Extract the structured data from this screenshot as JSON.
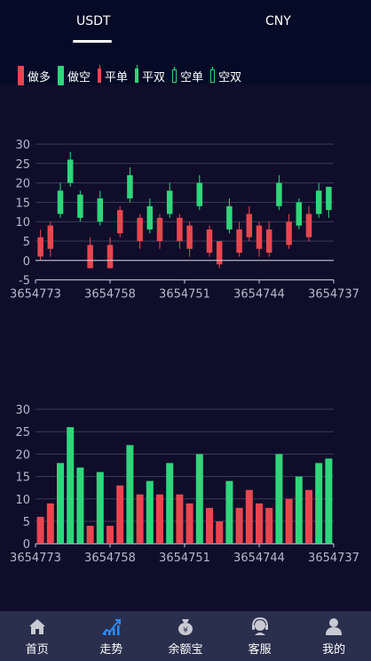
{
  "tabs": {
    "usdt": "USDT",
    "cny": "CNY"
  },
  "legend": [
    {
      "label": "做多",
      "style": "solid",
      "color": "#e8464f"
    },
    {
      "label": "做空",
      "style": "solid",
      "color": "#2fd67a"
    },
    {
      "label": "平单",
      "style": "thin",
      "color": "#e8464f"
    },
    {
      "label": "平双",
      "style": "thin",
      "color": "#2fd67a"
    },
    {
      "label": "空单",
      "style": "hollow",
      "color": "#2fd67a"
    },
    {
      "label": "空双",
      "style": "hollow",
      "color": "#2fd67a"
    }
  ],
  "colors": {
    "up": "#2fd67a",
    "down": "#e8464f",
    "grid": "#3a3d58",
    "axis_text": "#b9b8cc"
  },
  "chart_data": [
    {
      "type": "candlestick",
      "yticks": [
        -5,
        0,
        5,
        10,
        15,
        20,
        25,
        30
      ],
      "ylim": [
        -5,
        30
      ],
      "xticks": [
        "3654773",
        "3654758",
        "3654751",
        "3654744",
        "3654737"
      ],
      "candles": [
        {
          "open": 1,
          "close": 6,
          "low": 0,
          "high": 8,
          "dir": "down"
        },
        {
          "open": 3,
          "close": 9,
          "low": 1,
          "high": 10,
          "dir": "down"
        },
        {
          "open": 12,
          "close": 18,
          "low": 11,
          "high": 20,
          "dir": "up"
        },
        {
          "open": 20,
          "close": 26,
          "low": 19,
          "high": 28,
          "dir": "up"
        },
        {
          "open": 11,
          "close": 17,
          "low": 10,
          "high": 18,
          "dir": "up"
        },
        {
          "open": -2,
          "close": 4,
          "low": -2,
          "high": 6,
          "dir": "down"
        },
        {
          "open": 10,
          "close": 16,
          "low": 9,
          "high": 18,
          "dir": "up"
        },
        {
          "open": -2,
          "close": 4,
          "low": -2,
          "high": 6,
          "dir": "down"
        },
        {
          "open": 7,
          "close": 13,
          "low": 6,
          "high": 14,
          "dir": "down"
        },
        {
          "open": 16,
          "close": 22,
          "low": 15,
          "high": 24,
          "dir": "up"
        },
        {
          "open": 5,
          "close": 11,
          "low": 3,
          "high": 12,
          "dir": "down"
        },
        {
          "open": 8,
          "close": 14,
          "low": 7,
          "high": 16,
          "dir": "up"
        },
        {
          "open": 5,
          "close": 11,
          "low": 3,
          "high": 12,
          "dir": "down"
        },
        {
          "open": 12,
          "close": 18,
          "low": 11,
          "high": 20,
          "dir": "up"
        },
        {
          "open": 5,
          "close": 11,
          "low": 3,
          "high": 12,
          "dir": "down"
        },
        {
          "open": 3,
          "close": 9,
          "low": 1,
          "high": 10,
          "dir": "down"
        },
        {
          "open": 14,
          "close": 20,
          "low": 13,
          "high": 22,
          "dir": "up"
        },
        {
          "open": 2,
          "close": 8,
          "low": 1,
          "high": 9,
          "dir": "down"
        },
        {
          "open": -1,
          "close": 5,
          "low": -2,
          "high": 5,
          "dir": "down"
        },
        {
          "open": 8,
          "close": 14,
          "low": 7,
          "high": 16,
          "dir": "up"
        },
        {
          "open": 2,
          "close": 8,
          "low": 1,
          "high": 10,
          "dir": "down"
        },
        {
          "open": 6,
          "close": 12,
          "low": 5,
          "high": 14,
          "dir": "down"
        },
        {
          "open": 3,
          "close": 9,
          "low": 1,
          "high": 10,
          "dir": "down"
        },
        {
          "open": 2,
          "close": 8,
          "low": 1,
          "high": 10,
          "dir": "down"
        },
        {
          "open": 14,
          "close": 20,
          "low": 13,
          "high": 22,
          "dir": "up"
        },
        {
          "open": 4,
          "close": 10,
          "low": 3,
          "high": 12,
          "dir": "down"
        },
        {
          "open": 9,
          "close": 15,
          "low": 8,
          "high": 16,
          "dir": "up"
        },
        {
          "open": 6,
          "close": 12,
          "low": 5,
          "high": 14,
          "dir": "down"
        },
        {
          "open": 12,
          "close": 18,
          "low": 11,
          "high": 20,
          "dir": "up"
        },
        {
          "open": 13,
          "close": 19,
          "low": 11,
          "high": 19,
          "dir": "up"
        }
      ]
    },
    {
      "type": "bar",
      "yticks": [
        0,
        5,
        10,
        15,
        20,
        25,
        30
      ],
      "ylim": [
        0,
        30
      ],
      "xticks": [
        "3654773",
        "3654758",
        "3654751",
        "3654744",
        "3654737"
      ],
      "bars": [
        {
          "value": 6,
          "dir": "down"
        },
        {
          "value": 9,
          "dir": "down"
        },
        {
          "value": 18,
          "dir": "up"
        },
        {
          "value": 26,
          "dir": "up"
        },
        {
          "value": 17,
          "dir": "up"
        },
        {
          "value": 4,
          "dir": "down"
        },
        {
          "value": 16,
          "dir": "up"
        },
        {
          "value": 4,
          "dir": "down"
        },
        {
          "value": 13,
          "dir": "down"
        },
        {
          "value": 22,
          "dir": "up"
        },
        {
          "value": 11,
          "dir": "down"
        },
        {
          "value": 14,
          "dir": "up"
        },
        {
          "value": 11,
          "dir": "down"
        },
        {
          "value": 18,
          "dir": "up"
        },
        {
          "value": 11,
          "dir": "down"
        },
        {
          "value": 9,
          "dir": "down"
        },
        {
          "value": 20,
          "dir": "up"
        },
        {
          "value": 8,
          "dir": "down"
        },
        {
          "value": 5,
          "dir": "down"
        },
        {
          "value": 14,
          "dir": "up"
        },
        {
          "value": 8,
          "dir": "down"
        },
        {
          "value": 12,
          "dir": "down"
        },
        {
          "value": 9,
          "dir": "down"
        },
        {
          "value": 8,
          "dir": "down"
        },
        {
          "value": 20,
          "dir": "up"
        },
        {
          "value": 10,
          "dir": "down"
        },
        {
          "value": 15,
          "dir": "up"
        },
        {
          "value": 12,
          "dir": "down"
        },
        {
          "value": 18,
          "dir": "up"
        },
        {
          "value": 19,
          "dir": "up"
        }
      ]
    }
  ],
  "nav": [
    {
      "label": "首页",
      "icon": "home-icon",
      "active": false
    },
    {
      "label": "走势",
      "icon": "trend-icon",
      "active": true
    },
    {
      "label": "余额宝",
      "icon": "moneybag-icon",
      "active": false
    },
    {
      "label": "客服",
      "icon": "support-icon",
      "active": false
    },
    {
      "label": "我的",
      "icon": "user-icon",
      "active": false
    }
  ]
}
